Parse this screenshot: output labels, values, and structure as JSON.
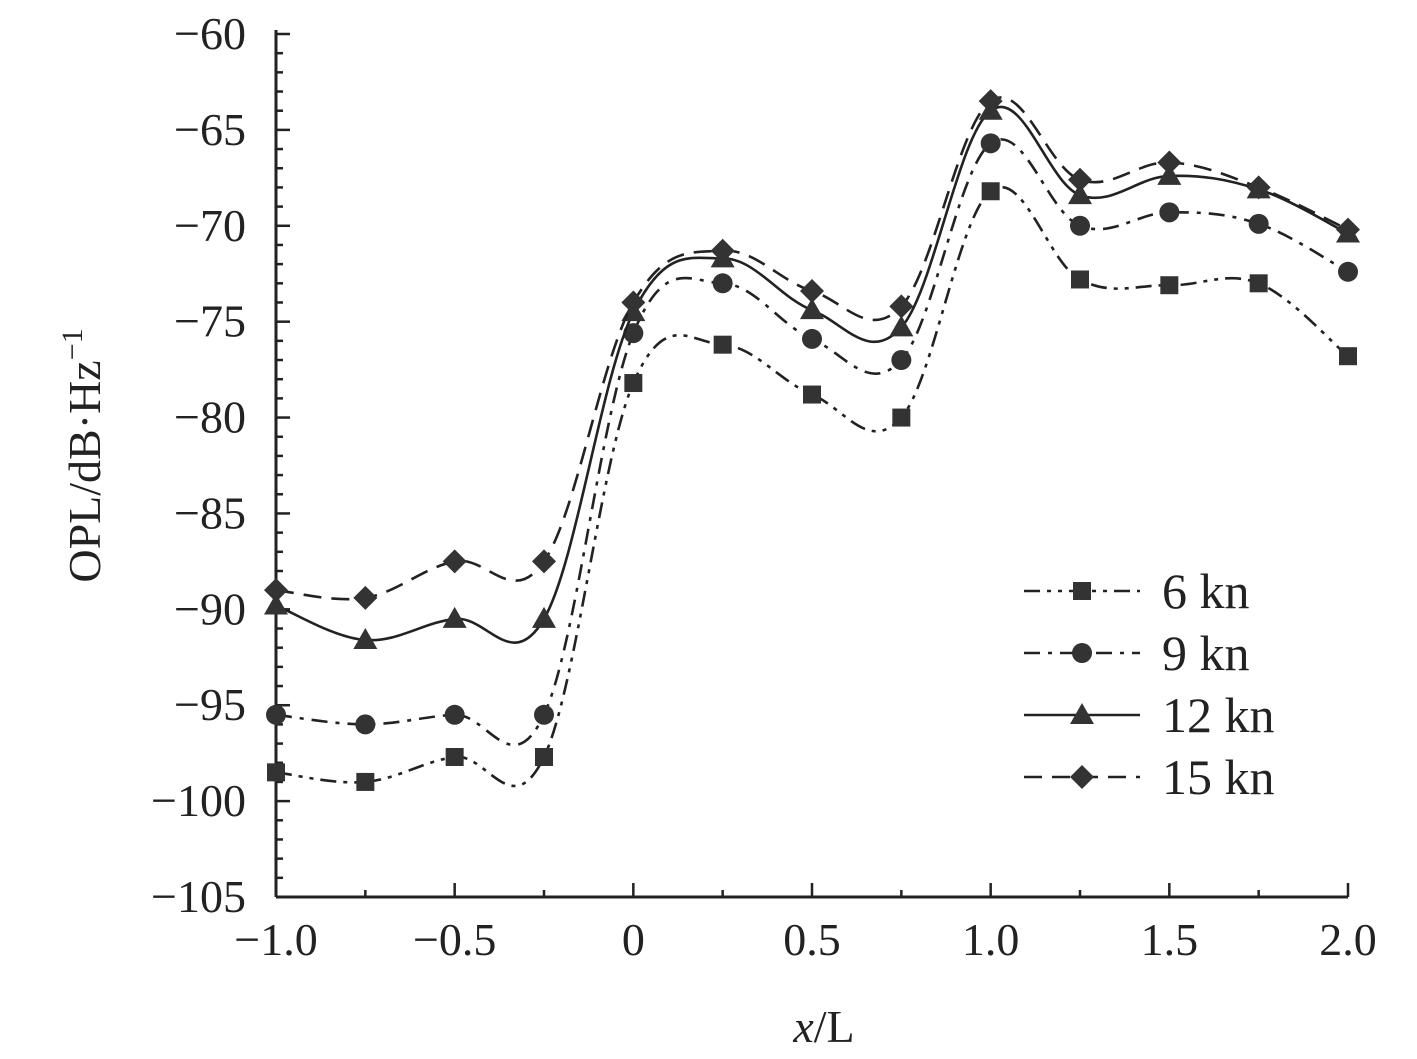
{
  "chart_data": {
    "type": "line",
    "title": "",
    "xlabel_italic": "x",
    "xlabel_rest": "/L",
    "ylabel_main": "OPL/dB·Hz",
    "ylabel_sup": "−1",
    "xlim": [
      -1.0,
      2.0
    ],
    "ylim": [
      -105,
      -60
    ],
    "xticks": [
      -1.0,
      -0.5,
      0,
      0.5,
      1.0,
      1.5,
      2.0
    ],
    "xtick_labels": [
      "−1.0",
      "−0.5",
      "0",
      "0.5",
      "1.0",
      "1.5",
      "2.0"
    ],
    "yticks": [
      -60,
      -65,
      -70,
      -75,
      -80,
      -85,
      -90,
      -95,
      -100,
      -105
    ],
    "ytick_labels": [
      "−60",
      "−65",
      "−70",
      "−75",
      "−80",
      "−85",
      "−90",
      "−95",
      "−100",
      "−105"
    ],
    "x": [
      -1.0,
      -0.75,
      -0.5,
      -0.25,
      0,
      0.25,
      0.5,
      0.75,
      1.0,
      1.25,
      1.5,
      1.75,
      2.0
    ],
    "legend_position": "lower-right",
    "series": [
      {
        "name": "6 kn",
        "marker": "square",
        "dash": "dashdotdot",
        "values": [
          -98.5,
          -99.0,
          -97.7,
          -97.7,
          -78.2,
          -76.2,
          -78.8,
          -80.0,
          -68.2,
          -72.8,
          -73.1,
          -73.0,
          -76.8
        ]
      },
      {
        "name": "9 kn",
        "marker": "circle",
        "dash": "dashdot",
        "values": [
          -95.5,
          -96.0,
          -95.5,
          -95.5,
          -75.6,
          -73.0,
          -75.9,
          -77.0,
          -65.7,
          -70.0,
          -69.3,
          -69.9,
          -72.4
        ]
      },
      {
        "name": "12 kn",
        "marker": "triangle",
        "dash": "solid",
        "values": [
          -89.8,
          -91.6,
          -90.5,
          -90.5,
          -74.5,
          -71.7,
          -74.4,
          -75.3,
          -64.0,
          -68.4,
          -67.4,
          -68.1,
          -70.4
        ]
      },
      {
        "name": "15 kn",
        "marker": "diamond",
        "dash": "dashed",
        "values": [
          -89.0,
          -89.4,
          -87.5,
          -87.5,
          -74.0,
          -71.3,
          -73.4,
          -74.2,
          -63.5,
          -67.6,
          -66.7,
          -68.0,
          -70.2
        ]
      }
    ]
  }
}
